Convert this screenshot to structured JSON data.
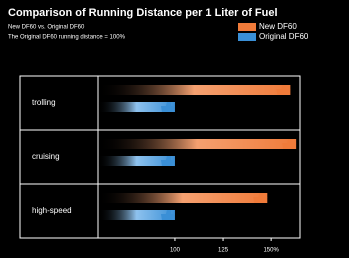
{
  "chart_data": {
    "type": "bar",
    "orientation": "horizontal",
    "title": "Comparison of Running Distance per 1 Liter of Fuel",
    "subtitle": [
      "New DF60 vs. Original DF60",
      "The Original DF60 running distance = 100%"
    ],
    "categories": [
      "trolling",
      "cruising",
      "high-speed"
    ],
    "series": [
      {
        "name": "New DF60",
        "color": "#f07b3a",
        "values": [
          160,
          163,
          148
        ]
      },
      {
        "name": "Original DF60",
        "color": "#3a8fd6",
        "values": [
          100,
          100,
          100
        ]
      }
    ],
    "xlim": [
      60,
      165
    ],
    "xticks": [
      100,
      125,
      {
        "value": 150,
        "label": "150%"
      }
    ],
    "legend": "top-right"
  }
}
